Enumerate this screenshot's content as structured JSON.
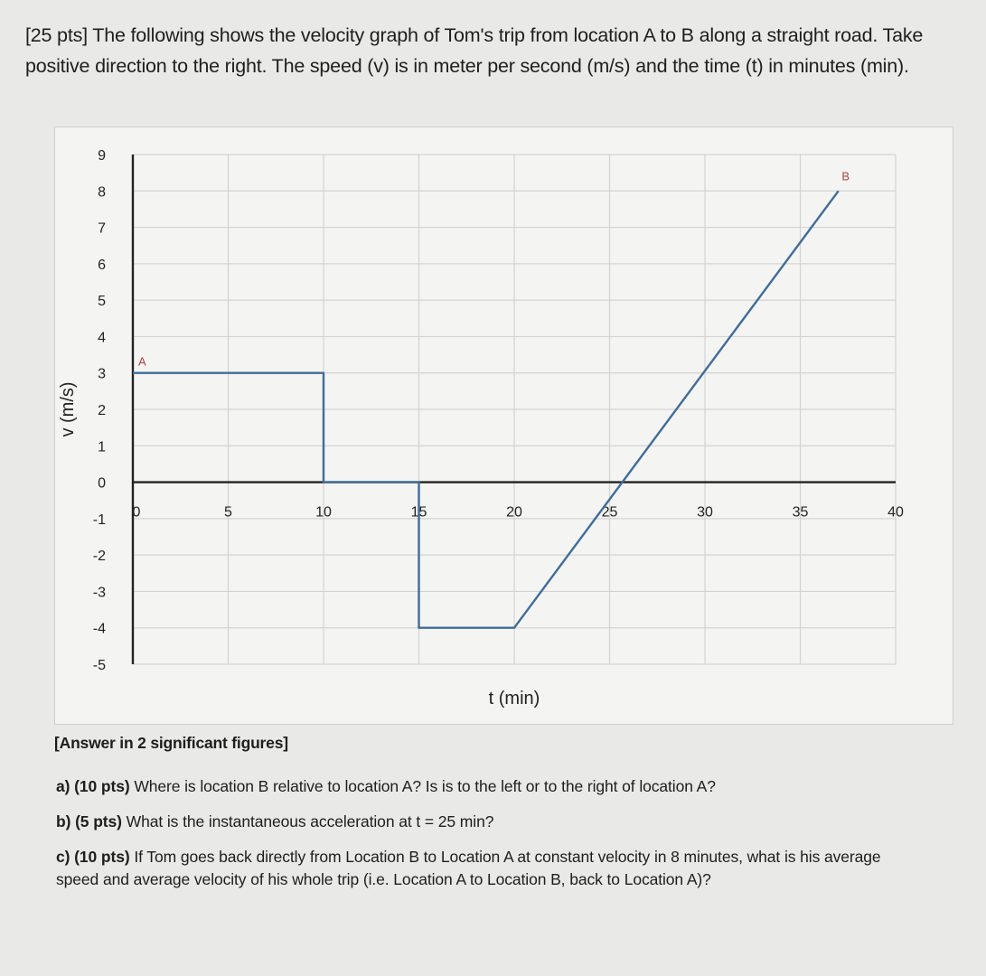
{
  "intro_text": "[25 pts] The following shows the velocity graph of Tom's trip from location A to B along a straight road. Take positive direction to the right. The speed (v) is in meter per second (m/s) and the time (t) in minutes (min).",
  "chart_data": {
    "type": "line",
    "xlabel": "t (min)",
    "ylabel": "v (m/s)",
    "xlim": [
      0,
      40
    ],
    "ylim": [
      -5,
      9
    ],
    "x_ticks": [
      "0",
      "5",
      "10",
      "15",
      "20",
      "25",
      "30",
      "35",
      "40"
    ],
    "y_ticks": [
      "9",
      "8",
      "7",
      "6",
      "5",
      "4",
      "3",
      "2",
      "1",
      "0",
      "-1",
      "-2",
      "-3",
      "-4",
      "-5"
    ],
    "series": [
      {
        "points": [
          [
            0,
            3
          ],
          [
            10,
            3
          ],
          [
            10,
            0
          ],
          [
            15,
            0
          ],
          [
            15,
            -4
          ],
          [
            20,
            -4
          ],
          [
            37,
            8
          ]
        ],
        "color": "#3f6c9a"
      }
    ],
    "annotations": [
      {
        "text": "A",
        "x": 0,
        "y": 3
      },
      {
        "text": "B",
        "x": 37,
        "y": 8
      }
    ],
    "grid": true,
    "annotation_color": "#b0413e"
  },
  "note": "[Answer in 2 significant figures]",
  "questions": [
    {
      "points": "a) (10 pts)",
      "text": "Where is location B relative to location A? Is is to the left or to the right of location A?"
    },
    {
      "points": "b) (5 pts)",
      "text": "What is the instantaneous acceleration at t = 25 min?"
    },
    {
      "points": "c) (10 pts)",
      "text": "If Tom goes back directly from Location B to Location A at constant velocity in 8 minutes, what is his average speed and average velocity of his whole trip (i.e. Location A to Location B, back to Location A)?"
    }
  ]
}
